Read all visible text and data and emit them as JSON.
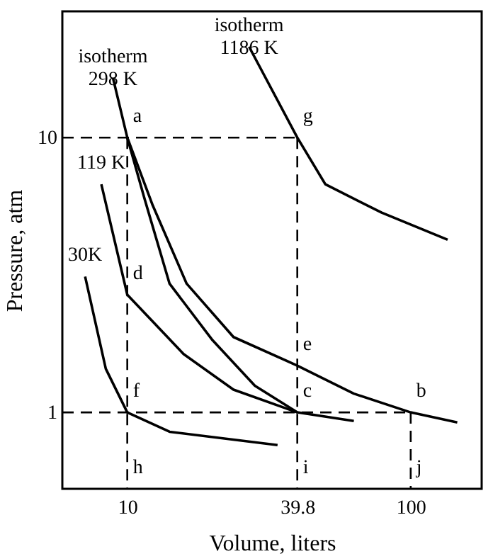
{
  "chart_data": {
    "type": "line",
    "xlabel": "Volume, liters",
    "ylabel": "Pressure, atm",
    "log": "xy",
    "xlim": [
      5.9,
      178
    ],
    "ylim": [
      0.527,
      28.8
    ],
    "xticks": [
      10,
      39.8,
      100
    ],
    "yticks": [
      1,
      10
    ],
    "grid": false,
    "series": [
      {
        "name": "isotherm\n298 K",
        "color": "#000000",
        "x": [
          8.9,
          10,
          12.3,
          16.2,
          23.7,
          39.8,
          63,
          100,
          146
        ],
        "values": [
          16.5,
          10,
          5.66,
          2.94,
          1.88,
          1.48,
          1.17,
          1,
          0.92
        ]
      },
      {
        "color": "#000000",
        "x": [
          10,
          11.5,
          14.1,
          20,
          28.2,
          39.8,
          63
        ],
        "values": [
          10,
          6.0,
          2.94,
          1.83,
          1.25,
          1,
          0.93
        ]
      },
      {
        "name": "119 K",
        "color": "#000000",
        "x": [
          8.1,
          10,
          15.8,
          23.7,
          39.8
        ],
        "values": [
          6.76,
          2.68,
          1.63,
          1.21,
          1
        ]
      },
      {
        "name": "30K",
        "color": "#000000",
        "x": [
          7.1,
          8.4,
          10,
          14.1,
          33.9
        ],
        "values": [
          3.12,
          1.44,
          1,
          0.85,
          0.76
        ]
      },
      {
        "name": "isotherm\n1186 K",
        "color": "#000000",
        "x": [
          26.9,
          39.8,
          50,
          79,
          135
        ],
        "values": [
          21.4,
          10,
          6.76,
          5.33,
          4.25
        ]
      },
      {
        "color": "#000000",
        "line_style": "dashed",
        "x": [
          5.9,
          39.8
        ],
        "values": [
          10,
          10
        ]
      },
      {
        "color": "#000000",
        "line_style": "dashed",
        "x": [
          39.8,
          39.8
        ],
        "values": [
          10,
          0.527
        ]
      },
      {
        "color": "#000000",
        "line_style": "dashed",
        "x": [
          5.9,
          100
        ],
        "values": [
          1,
          1
        ]
      },
      {
        "color": "#000000",
        "line_style": "dashed",
        "x": [
          10,
          10
        ],
        "values": [
          10,
          0.527
        ]
      },
      {
        "color": "#000000",
        "line_style": "dashed",
        "x": [
          100,
          100
        ],
        "values": [
          1,
          0.527
        ]
      }
    ],
    "annotations": [
      {
        "text": "a",
        "x": 10,
        "y": 10
      },
      {
        "text": "g",
        "x": 39.8,
        "y": 10
      },
      {
        "text": "d",
        "x": 10,
        "y": 2.68
      },
      {
        "text": "e",
        "x": 39.8,
        "y": 1.48
      },
      {
        "text": "c",
        "x": 39.8,
        "y": 1
      },
      {
        "text": "b",
        "x": 100,
        "y": 1
      },
      {
        "text": "f",
        "x": 10,
        "y": 1
      },
      {
        "text": "h",
        "x": 10,
        "y": 0.527
      },
      {
        "text": "i",
        "x": 39.8,
        "y": 0.527
      },
      {
        "text": "j",
        "x": 100,
        "y": 0.527
      }
    ]
  }
}
